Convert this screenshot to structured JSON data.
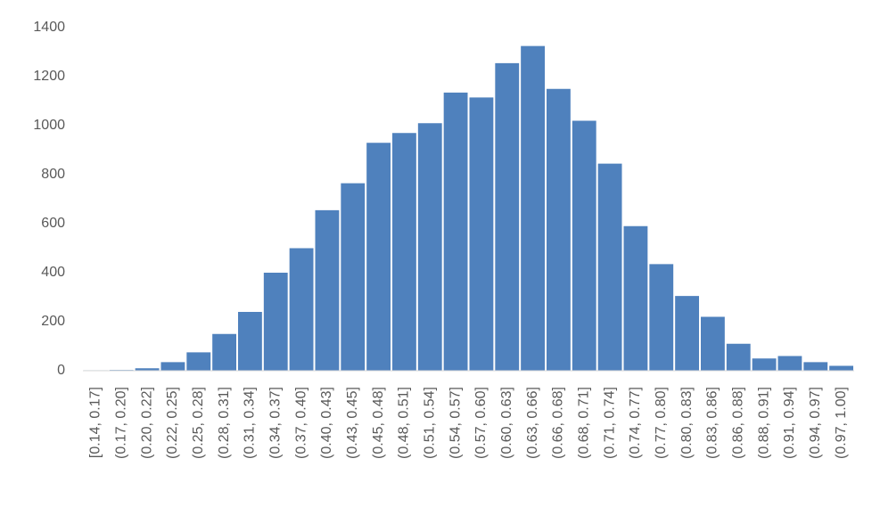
{
  "chart_data": {
    "type": "bar",
    "categories": [
      "[0.14, 0.17]",
      "(0.17, 0.20]",
      "(0.20, 0.22]",
      "(0.22, 0.25]",
      "(0.25, 0.28]",
      "(0.28, 0.31]",
      "(0.31, 0.34]",
      "(0.34, 0.37]",
      "(0.37, 0.40]",
      "(0.40, 0.43]",
      "(0.43, 0.45]",
      "(0.45, 0.48]",
      "(0.48, 0.51]",
      "(0.51, 0.54]",
      "(0.54, 0.57]",
      "(0.57, 0.60]",
      "(0.60, 0.63]",
      "(0.63, 0.66]",
      "(0.66, 0.68]",
      "(0.68, 0.71]",
      "(0.71, 0.74]",
      "(0.74, 0.77]",
      "(0.77, 0.80]",
      "(0.80, 0.83]",
      "(0.83, 0.86]",
      "(0.86, 0.88]",
      "(0.88, 0.91]",
      "(0.91, 0.94]",
      "(0.94, 0.97]",
      "(0.97, 1.00]"
    ],
    "values": [
      2,
      3,
      10,
      35,
      75,
      150,
      240,
      400,
      500,
      655,
      765,
      930,
      970,
      1010,
      1135,
      1115,
      1255,
      1325,
      1150,
      1020,
      845,
      590,
      435,
      305,
      220,
      110,
      50,
      60,
      35,
      20
    ],
    "color": "#4f81bd",
    "ylim": [
      0,
      1400
    ],
    "yticks": [
      0,
      200,
      400,
      600,
      800,
      1000,
      1200,
      1400
    ],
    "grid": false
  }
}
